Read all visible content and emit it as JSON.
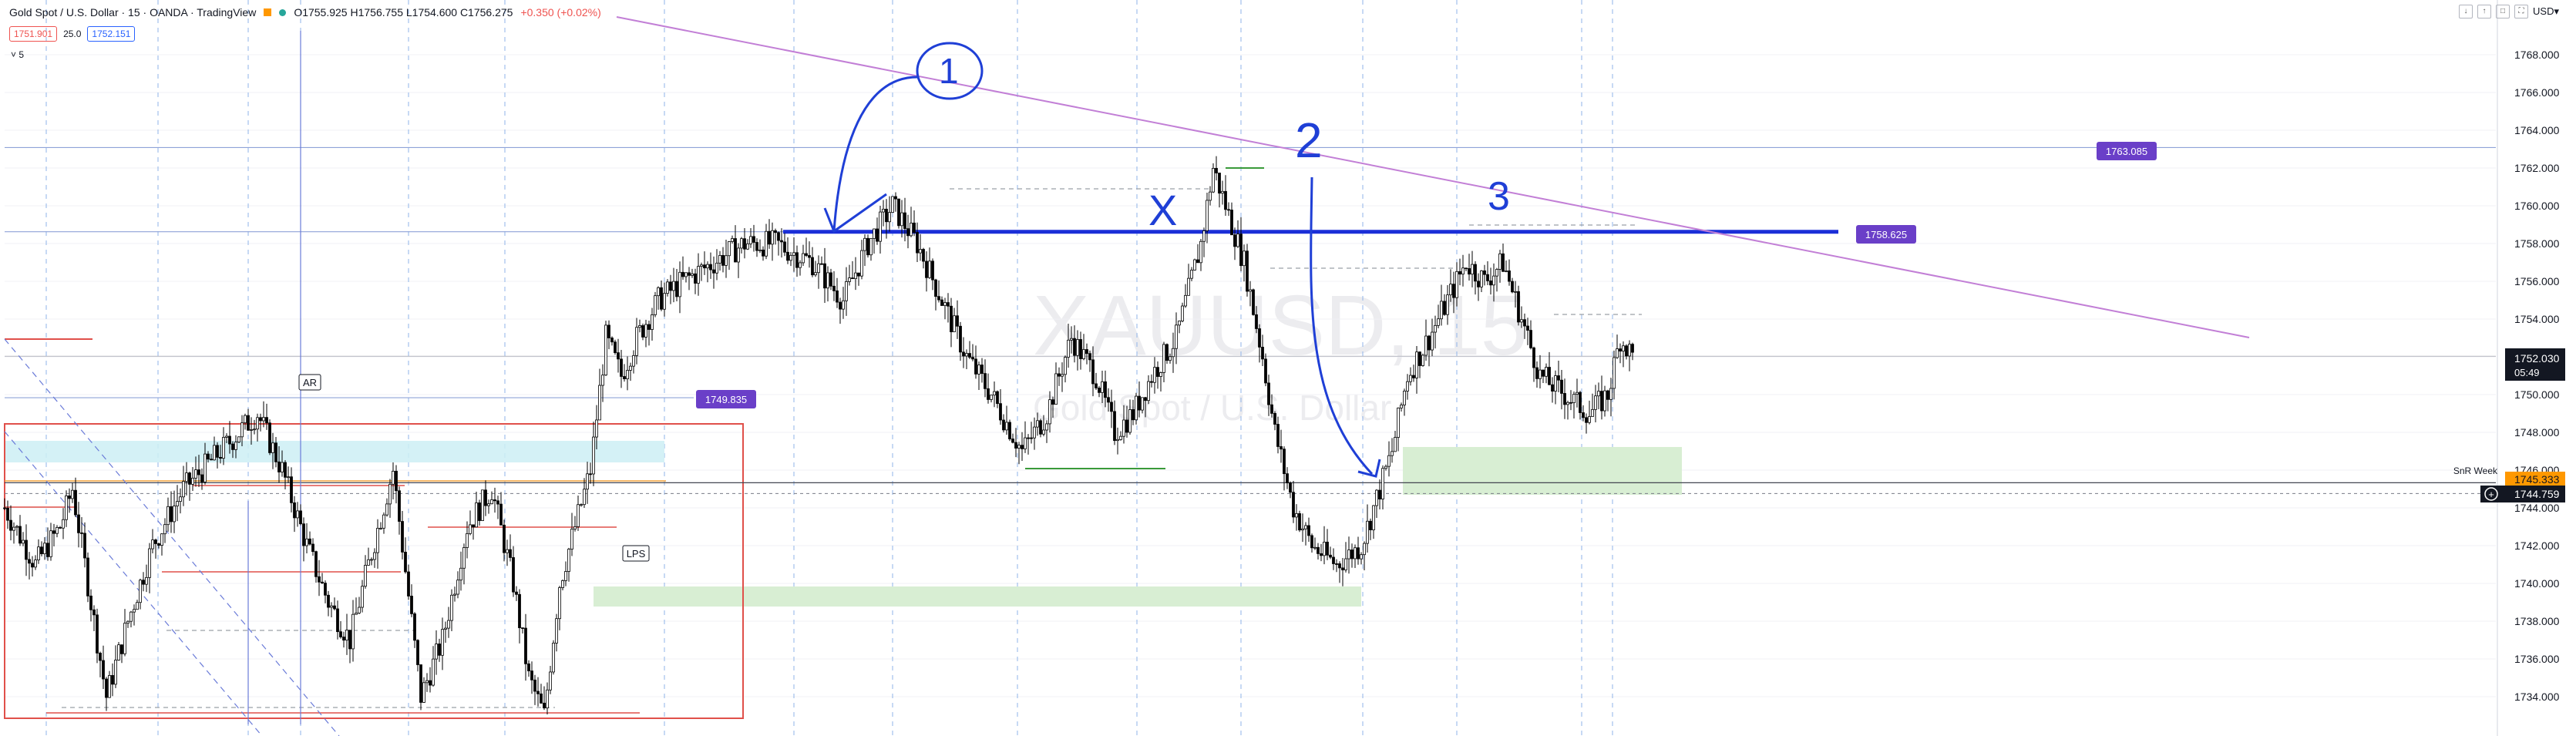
{
  "header": {
    "symbol": "Gold Spot / U.S. Dollar · 15 · OANDA · TradingView",
    "ohlc": "O1755.925 H1756.755 L1754.600 C1756.275",
    "change": "+0.350 (+0.02%)",
    "sell": "1751.901",
    "spread": "25.0",
    "buy": "1752.151",
    "indicator_toggle": "5"
  },
  "toolbar": {
    "currency": "USD▾",
    "btn1": "↓",
    "btn2": "↑",
    "btn3": "□",
    "btn4": "⛶"
  },
  "watermark": {
    "ticker": "XAUUSD, 15",
    "name": "Gold Spot / U.S. Dollar"
  },
  "colors": {
    "bull": "#ffffff",
    "bear": "#000000",
    "wick": "#000000",
    "trendline": "#c27fd6",
    "resistance": "#1b2fd8",
    "label_bg": "#6a3fc8",
    "ann_blue": "#1f3fd6",
    "red_box": "#e0504a"
  },
  "annotations": {
    "circle1": "1",
    "x": "X",
    "two": "2",
    "three": "3",
    "ar": "AR",
    "lps": "LPS",
    "snr": "SnR Week"
  },
  "chart_data": {
    "type": "candlestick",
    "title": "",
    "ylim": [
      1732,
      1770
    ],
    "y_ticks": [
      1734,
      1736,
      1738,
      1740,
      1742,
      1744,
      1746,
      1748,
      1750,
      1752,
      1754,
      1756,
      1758,
      1760,
      1762,
      1764,
      1766,
      1768
    ],
    "price_labels": {
      "current": "1752.030",
      "countdown": "05:49",
      "snr": "1745.333",
      "crosshair": "1744.759",
      "hline_top": "1763.085",
      "resistance": "1758.625",
      "ar_level": "1749.835"
    },
    "price_levels": {
      "current": 1752.03,
      "snr": 1745.333,
      "crosshair": 1744.759,
      "hline_top": 1763.085,
      "resistance": 1758.625,
      "ar_level": 1749.835
    },
    "series": [
      {
        "close_path": [
          [
            0,
            1744
          ],
          [
            10,
            1741
          ],
          [
            18,
            1743
          ],
          [
            22,
            1745
          ],
          [
            28,
            1739
          ],
          [
            33,
            1734
          ],
          [
            40,
            1738
          ],
          [
            48,
            1742
          ],
          [
            58,
            1745
          ],
          [
            70,
            1747
          ],
          [
            82,
            1749
          ],
          [
            90,
            1746
          ],
          [
            98,
            1742
          ],
          [
            105,
            1739
          ],
          [
            112,
            1737
          ],
          [
            118,
            1741
          ],
          [
            126,
            1746
          ],
          [
            135,
            1734
          ],
          [
            142,
            1737
          ],
          [
            150,
            1743
          ],
          [
            158,
            1745
          ],
          [
            165,
            1740
          ],
          [
            170,
            1735
          ],
          [
            175,
            1733
          ],
          [
            180,
            1740
          ],
          [
            185,
            1743
          ],
          [
            190,
            1746
          ],
          [
            195,
            1753
          ],
          [
            200,
            1751
          ],
          [
            205,
            1753
          ],
          [
            212,
            1755
          ],
          [
            220,
            1756
          ],
          [
            230,
            1757
          ],
          [
            240,
            1758
          ],
          [
            250,
            1758
          ],
          [
            262,
            1757
          ],
          [
            272,
            1755
          ],
          [
            280,
            1758
          ],
          [
            288,
            1760
          ],
          [
            296,
            1758
          ],
          [
            304,
            1755
          ],
          [
            312,
            1752
          ],
          [
            320,
            1750
          ],
          [
            330,
            1747
          ],
          [
            338,
            1749
          ],
          [
            346,
            1753
          ],
          [
            354,
            1751
          ],
          [
            360,
            1748
          ],
          [
            366,
            1749
          ],
          [
            372,
            1751
          ],
          [
            380,
            1753
          ],
          [
            388,
            1758
          ],
          [
            392,
            1762
          ],
          [
            396,
            1760
          ],
          [
            402,
            1757
          ],
          [
            408,
            1752
          ],
          [
            412,
            1748
          ],
          [
            418,
            1744
          ],
          [
            424,
            1742
          ],
          [
            432,
            1741
          ],
          [
            440,
            1742
          ],
          [
            446,
            1745
          ],
          [
            450,
            1747
          ],
          [
            455,
            1751
          ],
          [
            462,
            1753
          ],
          [
            468,
            1755
          ],
          [
            474,
            1757
          ],
          [
            480,
            1756
          ],
          [
            486,
            1757
          ],
          [
            492,
            1754
          ],
          [
            498,
            1751
          ],
          [
            506,
            1750
          ],
          [
            514,
            1749
          ],
          [
            520,
            1750
          ],
          [
            524,
            1753
          ],
          [
            528,
            1752.03
          ]
        ]
      }
    ]
  }
}
